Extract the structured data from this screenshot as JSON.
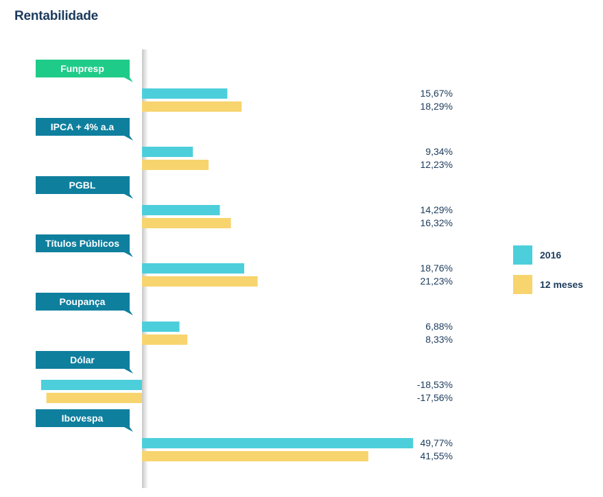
{
  "chart_data": {
    "type": "bar",
    "orientation": "horizontal",
    "title": "Rentabilidade",
    "categories": [
      "Funpresp",
      "IPCA + 4% a.a",
      "PGBL",
      "Títulos Públicos",
      "Poupança",
      "Dólar",
      "Ibovespa"
    ],
    "series": [
      {
        "name": "2016",
        "values": [
          15.67,
          9.34,
          14.29,
          18.76,
          6.88,
          -18.53,
          49.77
        ],
        "labels": [
          "15,67%",
          "9,34%",
          "14,29%",
          "18,76%",
          "6,88%",
          "-18,53%",
          "49,77%"
        ]
      },
      {
        "name": "12 meses",
        "values": [
          18.29,
          12.23,
          16.32,
          21.23,
          8.33,
          -17.56,
          41.55
        ],
        "labels": [
          "18,29%",
          "12,23%",
          "16,32%",
          "21,23%",
          "8,33%",
          "-17,56%",
          "41,55%"
        ]
      }
    ],
    "grid": false,
    "legend_position": "right",
    "colors": {
      "series_2016": "#4ccfdb",
      "series_12m": "#f7d46e",
      "tag_highlight": "#1fcb88",
      "tag_default": "#0f7f9e",
      "text": "#1b3a5c"
    }
  }
}
